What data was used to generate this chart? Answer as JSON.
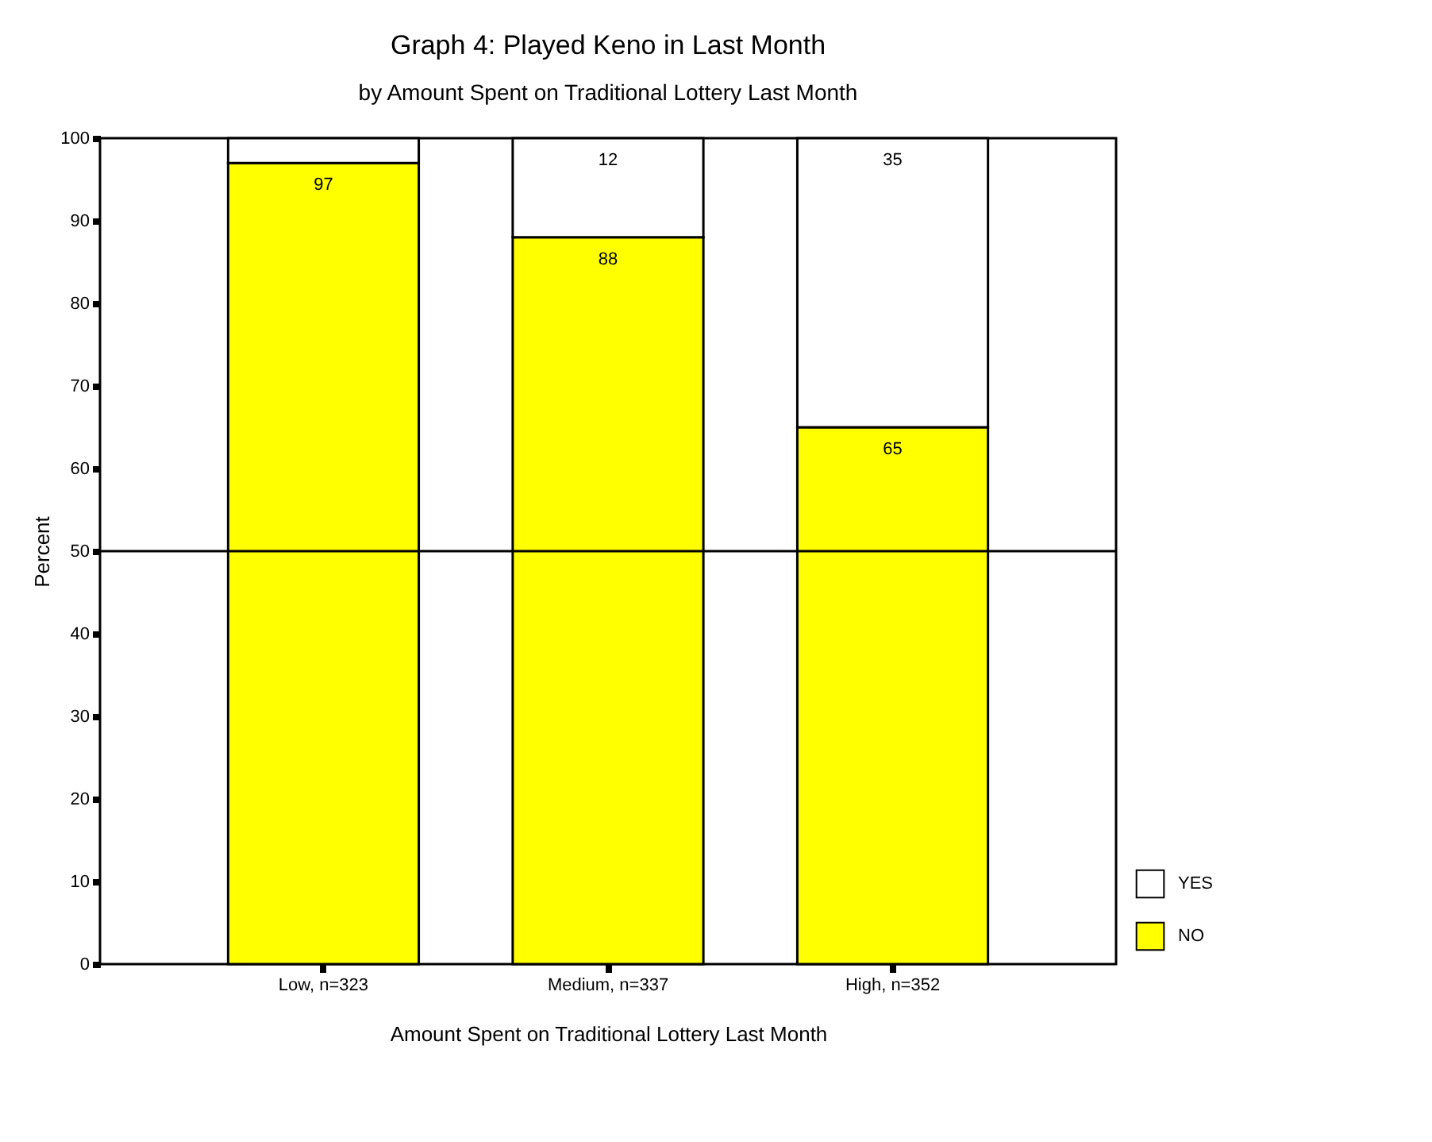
{
  "chart_data": {
    "type": "bar",
    "stacked": true,
    "title": "Graph 4:  Played Keno in Last Month",
    "subtitle": "by Amount Spent on Traditional Lottery Last Month",
    "xlabel": "Amount Spent on Traditional Lottery Last Month",
    "ylabel": "Percent",
    "categories": [
      "Low, n=323",
      "Medium, n=337",
      "High, n=352"
    ],
    "series": [
      {
        "name": "NO",
        "color": "#ffff00",
        "values": [
          97,
          88,
          65
        ],
        "value_labels": [
          "97",
          "88",
          "65"
        ]
      },
      {
        "name": "YES",
        "color": "#ffffff",
        "values": [
          3,
          12,
          35
        ],
        "value_labels": [
          null,
          "12",
          "35"
        ]
      }
    ],
    "ylim": [
      0,
      100
    ],
    "yticks": [
      0,
      10,
      20,
      30,
      40,
      50,
      60,
      70,
      80,
      90,
      100
    ],
    "ref_lines": [
      {
        "axis": "y",
        "value": 50
      }
    ],
    "legend": "bottom right",
    "grid": false
  }
}
